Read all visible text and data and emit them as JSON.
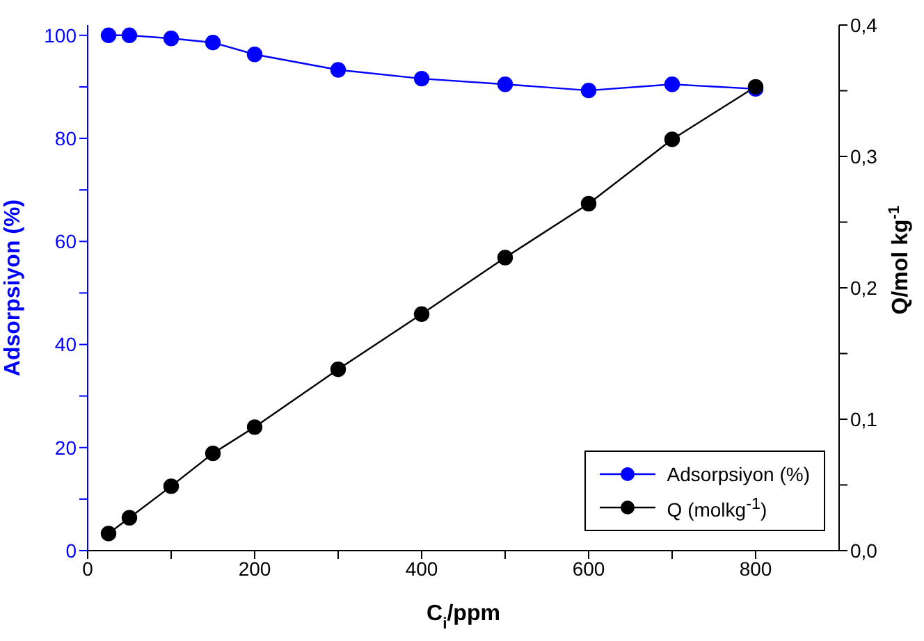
{
  "chart_data": {
    "type": "line",
    "xlabel": "C$_{i}$/ppm",
    "ylabel": "Adsorpsiyon (%)",
    "y2label": "Q/mol kg$^{-1}$",
    "x": [
      25,
      50,
      100,
      150,
      200,
      300,
      400,
      500,
      600,
      700,
      800
    ],
    "series": [
      {
        "name": "Adsorpsiyon (%)",
        "color": "#0000ff",
        "values": [
          100,
          100,
          99.4,
          98.6,
          96.3,
          93.3,
          91.6,
          90.5,
          89.3,
          90.5,
          89.6
        ]
      },
      {
        "name": "Q (molkg$^{-1}$)",
        "color": "#000000",
        "axis": "y2",
        "values": [
          0.013,
          0.025,
          0.049,
          0.074,
          0.094,
          0.138,
          0.18,
          0.223,
          0.264,
          0.313,
          0.353
        ]
      }
    ],
    "xlim": [
      0,
      900
    ],
    "xticks": [
      0,
      {
        "value": 100,
        "label": null
      },
      200,
      {
        "value": 300,
        "label": null
      },
      400,
      {
        "value": 500,
        "label": null
      },
      600,
      {
        "value": 700,
        "label": null
      },
      800
    ],
    "ylim": [
      0,
      102
    ],
    "yticks": [
      0,
      {
        "value": 10,
        "label": null
      },
      20,
      {
        "value": 30,
        "label": null
      },
      40,
      {
        "value": 50,
        "label": null
      },
      60,
      {
        "value": 70,
        "label": null
      },
      80,
      {
        "value": 90,
        "label": null
      },
      100
    ],
    "y2lim": [
      0,
      0.4
    ],
    "y2ticks": [
      {
        "value": 0,
        "label": "0,0"
      },
      {
        "value": 0.05,
        "label": null
      },
      {
        "value": 0.1,
        "label": "0,1"
      },
      {
        "value": 0.15,
        "label": null
      },
      {
        "value": 0.2,
        "label": "0,2"
      },
      {
        "value": 0.25,
        "label": null
      },
      {
        "value": 0.3,
        "label": "0,3"
      },
      {
        "value": 0.35,
        "label": null
      },
      {
        "value": 0.4,
        "label": "0,4"
      }
    ],
    "grid": false,
    "legend": "bottom right",
    "marker": "circle",
    "line_style": "solid"
  }
}
